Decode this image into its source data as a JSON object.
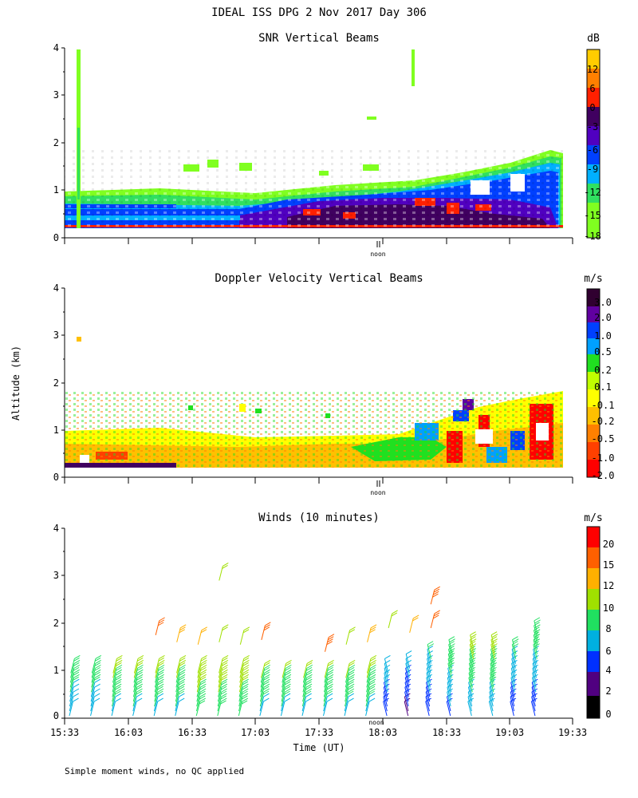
{
  "header": {
    "title": "IDEAL ISS DPG   2 Nov 2017 Day 306"
  },
  "footer": {
    "note": "Simple moment winds, no QC applied"
  },
  "common": {
    "y_axis_label": "Altitude (km)",
    "noon_label": "noon",
    "x_axis_label": "Time (UT)"
  },
  "chart_data": [
    {
      "type": "heatmap",
      "title": "SNR Vertical Beams",
      "ylabel": "Altitude (km)",
      "ylim": [
        0,
        4
      ],
      "yticks": [
        "0",
        "1",
        "2",
        "3",
        "4"
      ],
      "xlim": [
        "15:33",
        "19:33"
      ],
      "colorbar": {
        "unit": "dB",
        "labels": [
          "12",
          "6",
          "0",
          "-3",
          "-6",
          "-9",
          "-12",
          "-15",
          "-18"
        ],
        "colors": [
          "#ffcc00",
          "#ff8000",
          "#ff2000",
          "#400060",
          "#5000c0",
          "#0040ff",
          "#00b0ff",
          "#30e060",
          "#80ff20"
        ]
      },
      "data_extent": {
        "time_end": "19:13",
        "top_km_start": 0.9,
        "top_km_end": 1.7
      }
    },
    {
      "type": "heatmap",
      "title": "Doppler Velocity Vertical Beams",
      "ylabel": "Altitude (km)",
      "ylim": [
        0,
        4
      ],
      "yticks": [
        "0",
        "1",
        "2",
        "3",
        "4"
      ],
      "xlim": [
        "15:33",
        "19:33"
      ],
      "colorbar": {
        "unit": "m/s",
        "labels": [
          "3.0",
          "2.0",
          "1.0",
          "0.5",
          "0.2",
          "0.1",
          "-0.1",
          "-0.2",
          "-0.5",
          "-1.0",
          "-2.0"
        ],
        "colors": [
          "#300030",
          "#6000a0",
          "#0040ff",
          "#00a0ff",
          "#20e020",
          "#c0ff00",
          "#ffff00",
          "#ffc000",
          "#ff8000",
          "#ff4000",
          "#ff0000"
        ]
      },
      "data_extent": {
        "time_end": "19:13",
        "top_km_start": 0.9,
        "top_km_end": 1.7
      }
    },
    {
      "type": "wind_barbs",
      "title": "Winds (10 minutes)",
      "ylabel": "Altitude (km)",
      "xlabel": "Time (UT)",
      "ylim": [
        0,
        4
      ],
      "yticks": [
        "0",
        "1",
        "2",
        "3",
        "4"
      ],
      "xticks": [
        "15:33",
        "16:03",
        "16:33",
        "17:03",
        "17:33",
        "18:03",
        "18:33",
        "19:03",
        "19:33"
      ],
      "colorbar": {
        "unit": "m/s",
        "labels": [
          "20",
          "15",
          "12",
          "10",
          "8",
          "6",
          "4",
          "2",
          "0"
        ],
        "colors": [
          "#ff0000",
          "#ff6000",
          "#ffb000",
          "#a0e000",
          "#20e060",
          "#00b0e0",
          "#0030ff",
          "#500080",
          "#000000"
        ]
      },
      "profile_times": [
        "15:33",
        "15:43",
        "15:53",
        "16:03",
        "16:13",
        "16:23",
        "16:33",
        "16:43",
        "16:53",
        "17:03",
        "17:13",
        "17:23",
        "17:33",
        "17:43",
        "17:53",
        "18:03",
        "18:13",
        "18:23",
        "18:33",
        "18:43",
        "18:53",
        "19:03",
        "19:13"
      ],
      "profile_top_km": [
        1.0,
        1.0,
        1.0,
        1.0,
        1.0,
        1.0,
        1.0,
        1.0,
        1.0,
        0.9,
        0.9,
        0.9,
        0.9,
        0.9,
        1.0,
        1.0,
        1.1,
        1.3,
        1.4,
        1.5,
        1.5,
        1.4,
        1.8
      ],
      "profile_speed_ms": [
        7,
        7,
        8,
        8,
        8,
        8,
        9,
        9,
        9,
        8,
        8,
        8,
        8,
        8,
        8,
        5,
        4,
        5,
        6,
        7,
        7,
        5,
        5
      ],
      "upper_winds": [
        {
          "time": "16:43",
          "alt_km": 2.9,
          "speed_ms": 11
        },
        {
          "time": "16:13",
          "alt_km": 1.75,
          "speed_ms": 16
        },
        {
          "time": "16:23",
          "alt_km": 1.6,
          "speed_ms": 13
        },
        {
          "time": "16:33",
          "alt_km": 1.55,
          "speed_ms": 12
        },
        {
          "time": "16:43",
          "alt_km": 1.6,
          "speed_ms": 11
        },
        {
          "time": "16:53",
          "alt_km": 1.55,
          "speed_ms": 10
        },
        {
          "time": "17:03",
          "alt_km": 1.65,
          "speed_ms": 15
        },
        {
          "time": "17:33",
          "alt_km": 1.4,
          "speed_ms": 18
        },
        {
          "time": "17:43",
          "alt_km": 1.55,
          "speed_ms": 10
        },
        {
          "time": "17:53",
          "alt_km": 1.6,
          "speed_ms": 13
        },
        {
          "time": "18:03",
          "alt_km": 1.9,
          "speed_ms": 11
        },
        {
          "time": "18:13",
          "alt_km": 1.8,
          "speed_ms": 12
        },
        {
          "time": "18:23",
          "alt_km": 2.4,
          "speed_ms": 19
        },
        {
          "time": "18:23",
          "alt_km": 1.9,
          "speed_ms": 17
        }
      ]
    }
  ]
}
